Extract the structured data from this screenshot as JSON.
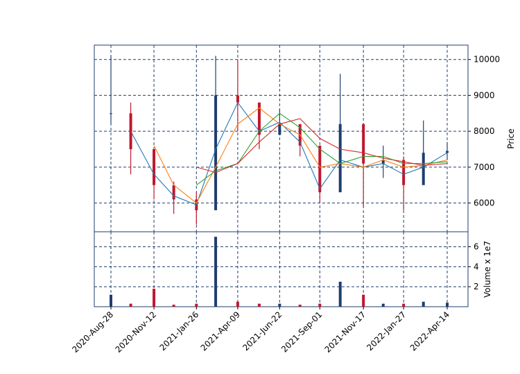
{
  "chart_data": [
    {
      "type": "candlestick",
      "panel": "price",
      "ylabel": "Price",
      "ylim": [
        5200,
        10400
      ],
      "yticks": [
        6000,
        7000,
        8000,
        9000,
        10000
      ],
      "grid": true,
      "colors": {
        "up": "#1f3d6e",
        "down": "#c0172e",
        "ma_short": "#1f77b4",
        "ma_mid": "#ff7f0e",
        "ma_long1": "#2ca02c",
        "ma_long2": "#d62728"
      },
      "x": [
        "2020-08-28",
        "2020-10-02",
        "2020-11-12",
        "2020-12-17",
        "2021-01-26",
        "2021-03-01",
        "2021-04-09",
        "2021-05-17",
        "2021-06-22",
        "2021-07-28",
        "2021-09-01",
        "2021-10-07",
        "2021-11-17",
        "2021-12-22",
        "2022-01-27",
        "2022-03-03",
        "2022-04-14"
      ],
      "close": [
        8500,
        7500,
        6500,
        6100,
        5800,
        9000,
        8800,
        7900,
        8200,
        7600,
        6300,
        8200,
        7100,
        7200,
        6500,
        7400,
        7450
      ],
      "high": [
        10100,
        8800,
        7300,
        6600,
        6300,
        10100,
        10000,
        8600,
        8600,
        8000,
        7300,
        9600,
        8000,
        7600,
        7300,
        8300,
        7700
      ],
      "low": [
        8200,
        6800,
        6100,
        5700,
        5400,
        6200,
        8000,
        7500,
        7900,
        7300,
        6000,
        6500,
        5900,
        6700,
        5800,
        6900,
        7200
      ],
      "ma_short": [
        null,
        8000,
        6800,
        6200,
        5950,
        7500,
        8800,
        8000,
        8250,
        7700,
        6400,
        7200,
        7000,
        7100,
        6800,
        7000,
        7400
      ],
      "ma_mid": [
        null,
        null,
        7600,
        6500,
        6000,
        7000,
        8200,
        8650,
        8200,
        7900,
        7000,
        7100,
        7000,
        7200,
        7000,
        7050,
        7200
      ],
      "ma_long1": [
        null,
        null,
        null,
        null,
        6500,
        6900,
        7100,
        8000,
        8500,
        8100,
        7500,
        7100,
        7300,
        7300,
        7100,
        7100,
        7150
      ],
      "ma_long2": [
        null,
        null,
        null,
        null,
        7000,
        6850,
        7100,
        7700,
        8200,
        8350,
        7800,
        7500,
        7400,
        7250,
        7150,
        7050,
        7100
      ]
    },
    {
      "type": "bar",
      "panel": "volume",
      "ylabel": "Volume x 1e7",
      "ylim": [
        0,
        7.5
      ],
      "yticks": [
        2,
        4,
        6
      ],
      "grid": true,
      "x": [
        "2020-08-28",
        "2020-10-02",
        "2020-11-12",
        "2020-12-17",
        "2021-01-26",
        "2021-03-01",
        "2021-04-09",
        "2021-05-17",
        "2021-06-22",
        "2021-07-28",
        "2021-09-01",
        "2021-10-07",
        "2021-11-17",
        "2021-12-22",
        "2022-01-27",
        "2022-03-03",
        "2022-04-14"
      ],
      "values": [
        1.2,
        0.3,
        1.8,
        0.2,
        0.3,
        7.0,
        0.5,
        0.3,
        0.3,
        0.2,
        0.3,
        2.5,
        1.2,
        0.3,
        0.3,
        0.5,
        0.4
      ]
    }
  ],
  "x_ticks": [
    "2020-Aug-28",
    "2020-Nov-12",
    "2021-Jan-26",
    "2021-Apr-09",
    "2021-Jun-22",
    "2021-Sep-01",
    "2021-Nov-17",
    "2022-Jan-27",
    "2022-Apr-14"
  ],
  "x_tick_dates": [
    "2020-08-28",
    "2020-11-12",
    "2021-01-26",
    "2021-04-09",
    "2021-06-22",
    "2021-09-01",
    "2021-11-17",
    "2022-01-27",
    "2022-04-14"
  ]
}
